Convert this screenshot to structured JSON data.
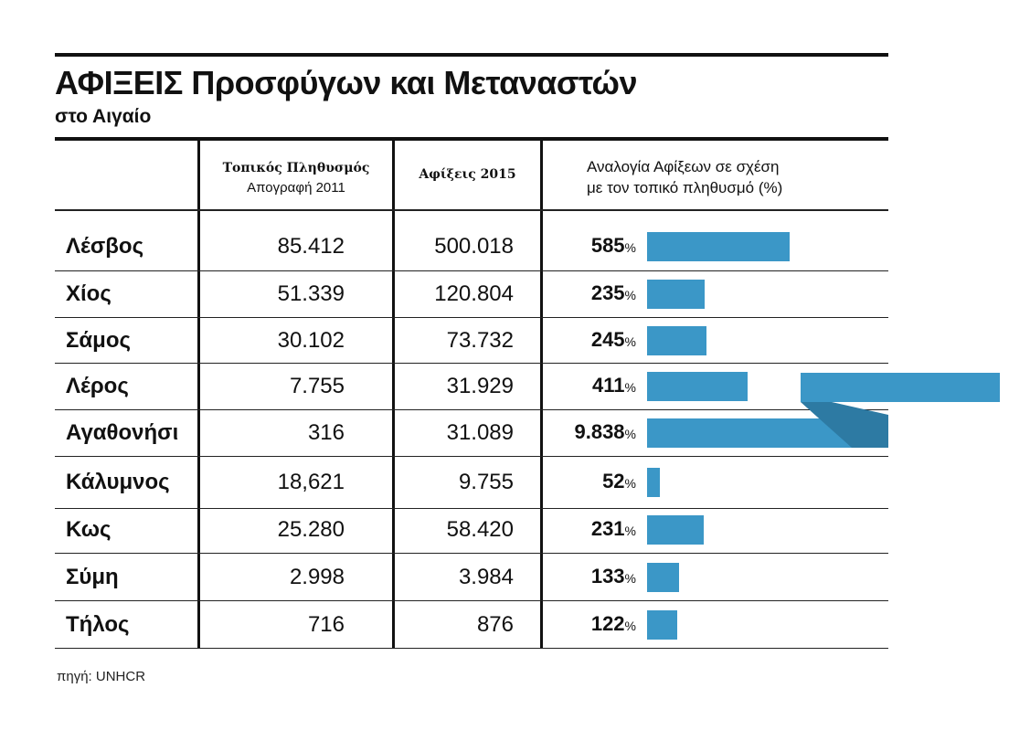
{
  "header": {
    "title": "ΑΦΙΞΕΙΣ Προσφύγων και Μεταναστών",
    "subtitle": "στο Αιγαίο"
  },
  "columns": {
    "population_label": "Τοπικός Πληθυσμός",
    "population_sublabel": "Απογραφή 2011",
    "arrivals_label": "Αφίξεις 2015",
    "ratio_label_line1": "Αναλογία Αφίξεων σε σχέση",
    "ratio_label_line2": "με τον τοπικό  πληθυσμό  (%)"
  },
  "footer": {
    "source": "πηγή: UNHCR"
  },
  "colors": {
    "bar": "#3b97c7",
    "bar_shadow": "#2d7aa3",
    "rule": "#111111"
  },
  "chart_data": {
    "type": "table",
    "columns": [
      "",
      "Τοπικός Πληθυσμός Απογραφή 2011",
      "Αφίξεις 2015",
      "Αναλογία Αφίξεων σε σχέση με τον τοπικό πληθυσμό (%)"
    ],
    "bar_series": "ratio",
    "bar_scale_max": 585,
    "bar_break_value": 9838,
    "rows": [
      {
        "name": "Λέσβος",
        "population": "85.412",
        "arrivals": "500.018",
        "ratio": "585",
        "ratio_value": 585,
        "unit": "%"
      },
      {
        "name": "Χίος",
        "population": "51.339",
        "arrivals": "120.804",
        "ratio": "235",
        "ratio_value": 235,
        "unit": "%"
      },
      {
        "name": "Σάμος",
        "population": "30.102",
        "arrivals": "73.732",
        "ratio": "245",
        "ratio_value": 245,
        "unit": "%"
      },
      {
        "name": "Λέρος",
        "population": "7.755",
        "arrivals": "31.929",
        "ratio": "411",
        "ratio_value": 411,
        "unit": "%"
      },
      {
        "name": "Αγαθονήσι",
        "population": "316",
        "arrivals": "31.089",
        "ratio": "9.838",
        "ratio_value": 9838,
        "unit": "%"
      },
      {
        "name": "Κάλυμνος",
        "population": "18,621",
        "arrivals": "9.755",
        "ratio": "52",
        "ratio_value": 52,
        "unit": "%"
      },
      {
        "name": "Κως",
        "population": "25.280",
        "arrivals": "58.420",
        "ratio": "231",
        "ratio_value": 231,
        "unit": "%"
      },
      {
        "name": "Σύμη",
        "population": "2.998",
        "arrivals": "3.984",
        "ratio": "133",
        "ratio_value": 133,
        "unit": "%"
      },
      {
        "name": "Τήλος",
        "population": "716",
        "arrivals": "876",
        "ratio": "122",
        "ratio_value": 122,
        "unit": "%"
      }
    ]
  }
}
